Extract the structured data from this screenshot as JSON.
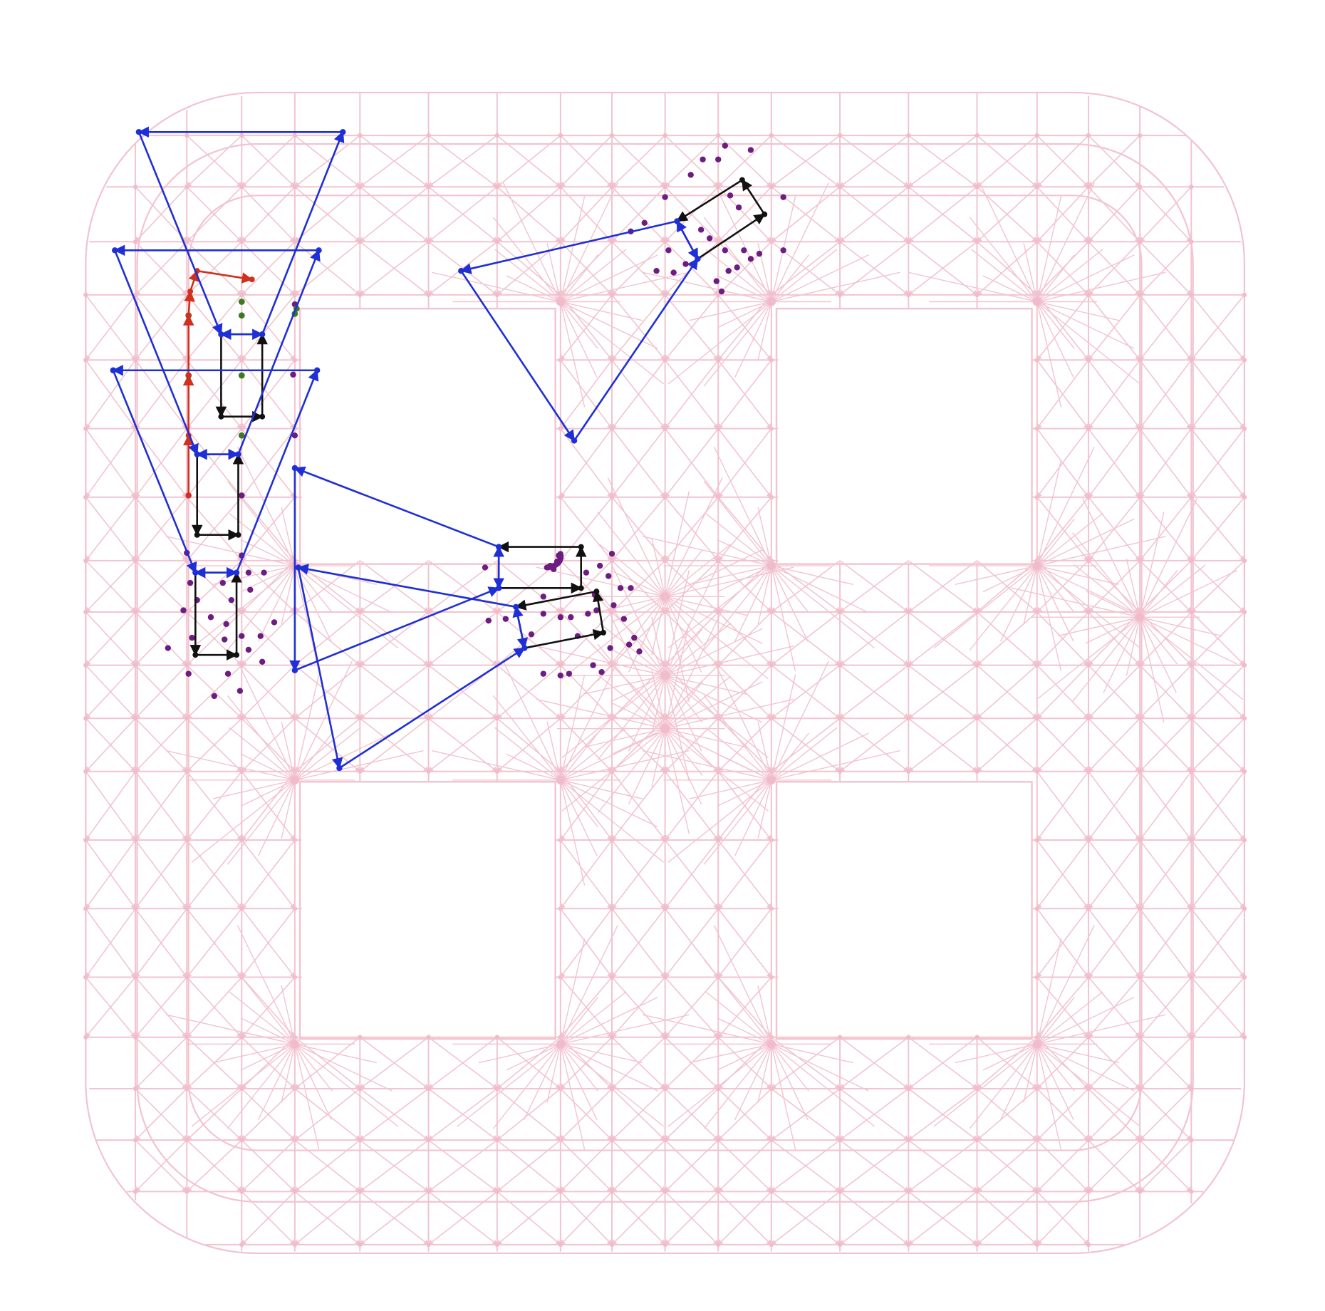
{
  "colors": {
    "background": "#ffffff",
    "lattice": "#f2c4cf",
    "lattice_node": "#f0bccb",
    "blue_path": "#1f2fd6",
    "black_path": "#111111",
    "red_path": "#d0301e",
    "purple_node": "#6d1d82",
    "green_node": "#3d7a1f"
  },
  "description_note": "",
  "layers": [
    {
      "id": "lattice",
      "color_key": "lattice"
    },
    {
      "id": "blue-paths",
      "color_key": "blue_path"
    },
    {
      "id": "black-cycles",
      "color_key": "black_path"
    },
    {
      "id": "red-path",
      "color_key": "red_path"
    },
    {
      "id": "purple-nodes",
      "color_key": "purple_node"
    },
    {
      "id": "green-nodes",
      "color_key": "green_node"
    }
  ]
}
